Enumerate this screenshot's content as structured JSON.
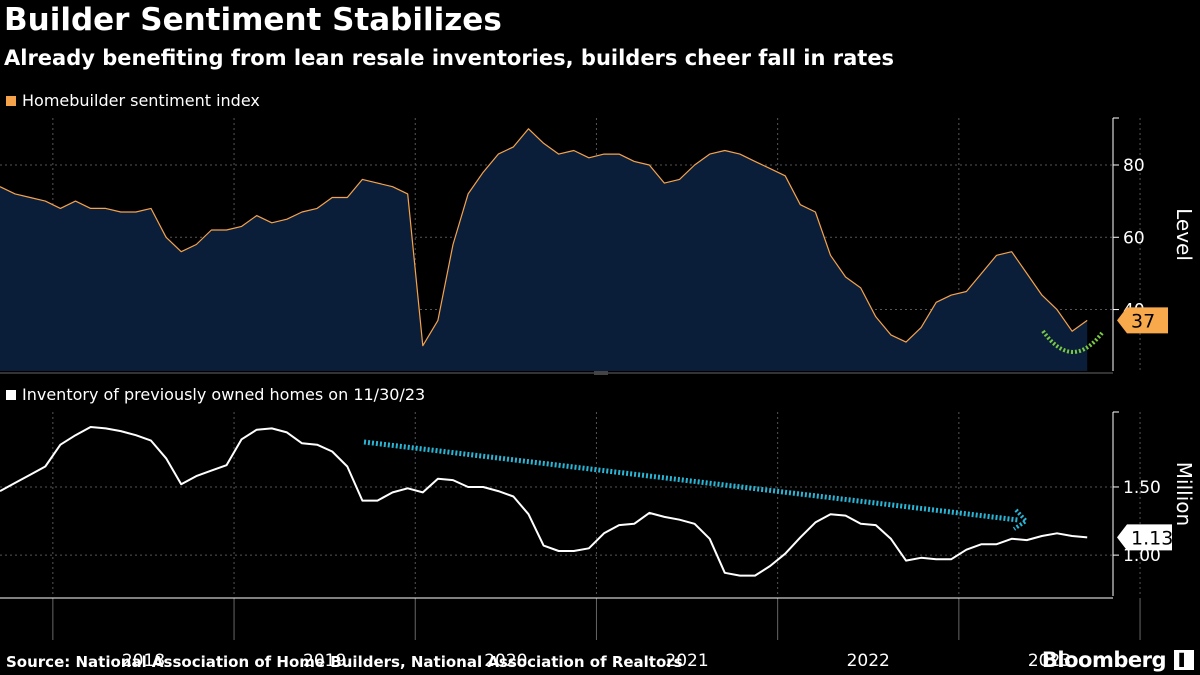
{
  "header": {
    "title": "Builder Sentiment Stabilizes",
    "subtitle": "Already benefiting from lean resale inventories, builders cheer fall in rates"
  },
  "footer": {
    "source": "Source: National Association of Home Builders, National Association of Realtors",
    "brand": "Bloomberg",
    "brand_icon": "bloomberg-logo-icon"
  },
  "colors": {
    "sentiment_line": "#f5a34a",
    "sentiment_fill": "#0a1e3a",
    "inventory_line": "#ffffff",
    "sentiment_callout": "#f7a94c",
    "green_arrow": "#7ac943",
    "blue_arrow": "#29b6d6"
  },
  "chart_data": [
    {
      "type": "area",
      "legend": "Homebuilder sentiment index",
      "ylabel": "Level",
      "ylim": [
        23,
        93
      ],
      "yticks": [
        40,
        60,
        80
      ],
      "last_value_label": "37",
      "x_start": "2017-09",
      "values": [
        74,
        72,
        71,
        70,
        68,
        70,
        68,
        68,
        67,
        67,
        68,
        60,
        56,
        58,
        62,
        62,
        63,
        66,
        64,
        65,
        67,
        68,
        71,
        71,
        76,
        75,
        74,
        72,
        30,
        37,
        58,
        72,
        78,
        83,
        85,
        90,
        86,
        83,
        84,
        82,
        83,
        83,
        81,
        80,
        75,
        76,
        80,
        83,
        84,
        83,
        81,
        79,
        77,
        69,
        67,
        55,
        49,
        46,
        38,
        33,
        31,
        35,
        42,
        44,
        45,
        50,
        55,
        56,
        50,
        44,
        40,
        34,
        37
      ]
    },
    {
      "type": "line",
      "legend": "Inventory of previously owned homes on 11/30/23",
      "ylabel": "Million",
      "ylim": [
        0.7,
        2.05
      ],
      "yticks": [
        1.0,
        1.5
      ],
      "ytick_labels": [
        "1.00",
        "1.50"
      ],
      "last_value_label": "1.13",
      "x_start": "2017-09",
      "values": [
        1.47,
        1.53,
        1.59,
        1.65,
        1.81,
        1.88,
        1.94,
        1.93,
        1.91,
        1.88,
        1.84,
        1.71,
        1.52,
        1.58,
        1.62,
        1.66,
        1.85,
        1.92,
        1.93,
        1.9,
        1.82,
        1.81,
        1.76,
        1.65,
        1.4,
        1.4,
        1.46,
        1.49,
        1.46,
        1.56,
        1.55,
        1.5,
        1.5,
        1.47,
        1.43,
        1.3,
        1.07,
        1.03,
        1.03,
        1.05,
        1.16,
        1.22,
        1.23,
        1.31,
        1.28,
        1.26,
        1.23,
        1.12,
        0.87,
        0.85,
        0.85,
        0.92,
        1.01,
        1.13,
        1.24,
        1.3,
        1.29,
        1.23,
        1.22,
        1.12,
        0.96,
        0.98,
        0.97,
        0.97,
        1.04,
        1.08,
        1.08,
        1.12,
        1.11,
        1.14,
        1.16,
        1.14,
        1.13
      ]
    }
  ],
  "x_axis": {
    "year_labels": [
      "2018",
      "2019",
      "2020",
      "2021",
      "2022",
      "2023"
    ],
    "year_start_months": [
      4,
      16,
      28,
      40,
      52,
      64
    ]
  },
  "annotations": {
    "sentiment_trend": "green-curved-dotted-arrow",
    "inventory_trend": "blue-dotted-downtrend-arrow"
  }
}
